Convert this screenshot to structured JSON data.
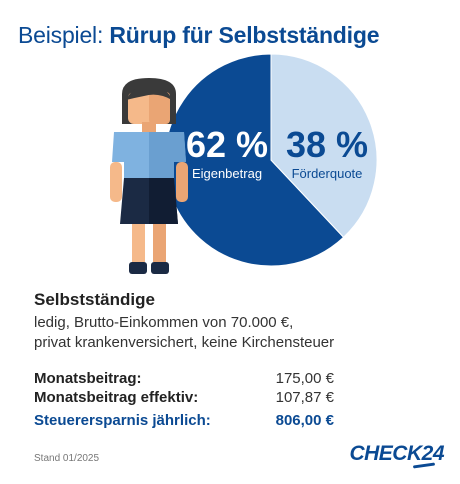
{
  "header": {
    "title_prefix": "Beispiel:",
    "title_main": "Rürup für Selbstständige"
  },
  "colors": {
    "primary": "#0b4a93",
    "light": "#c9ddf1"
  },
  "chart_data": {
    "type": "pie",
    "slices": [
      {
        "label": "Eigenbetrag",
        "value": 62,
        "value_label": "62 %",
        "color": "#0b4a93"
      },
      {
        "label": "Förderquote",
        "value": 38,
        "value_label": "38 %",
        "color": "#c9ddf1"
      }
    ]
  },
  "profile": {
    "heading": "Selbstständige",
    "line1": "ledig, Brutto-Einkommen von 70.000 €,",
    "line2": "privat krankenversichert, keine Kirchensteuer"
  },
  "rows": [
    {
      "label": "Monatsbeitrag:",
      "value": "175,00 €"
    },
    {
      "label": "Monatsbeitrag effektiv:",
      "value": "107,87 €"
    },
    {
      "label": "Steuerersparnis jährlich:",
      "value": "806,00 €"
    }
  ],
  "footer": {
    "stand": "Stand 01/2025"
  },
  "logo": {
    "text": "CHECK24"
  }
}
